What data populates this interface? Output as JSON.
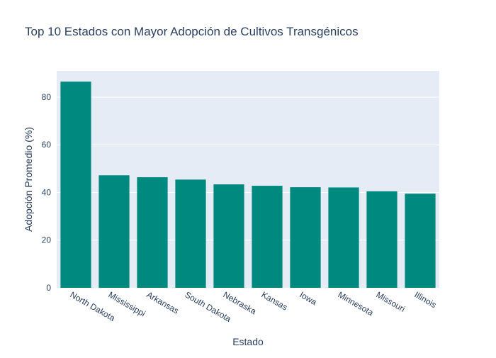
{
  "chart_data": {
    "type": "bar",
    "title": "Top 10 Estados con Mayor Adopción de Cultivos Transgénicos",
    "xlabel": "Estado",
    "ylabel": "Adopción Promedio (%)",
    "categories": [
      "North Dakota",
      "Mississippi",
      "Arkansas",
      "South Dakota",
      "Nebraska",
      "Kansas",
      "Iowa",
      "Minnesota",
      "Missouri",
      "Illinois"
    ],
    "values": [
      86.5,
      47.2,
      46.4,
      45.4,
      43.4,
      42.8,
      42.2,
      42.1,
      40.5,
      39.5
    ],
    "ylim": [
      0,
      91
    ],
    "yticks": [
      0,
      20,
      40,
      60,
      80
    ],
    "bar_color": "#00897f",
    "plot_background": "#e5ecf6",
    "grid": true,
    "legend": "none"
  }
}
